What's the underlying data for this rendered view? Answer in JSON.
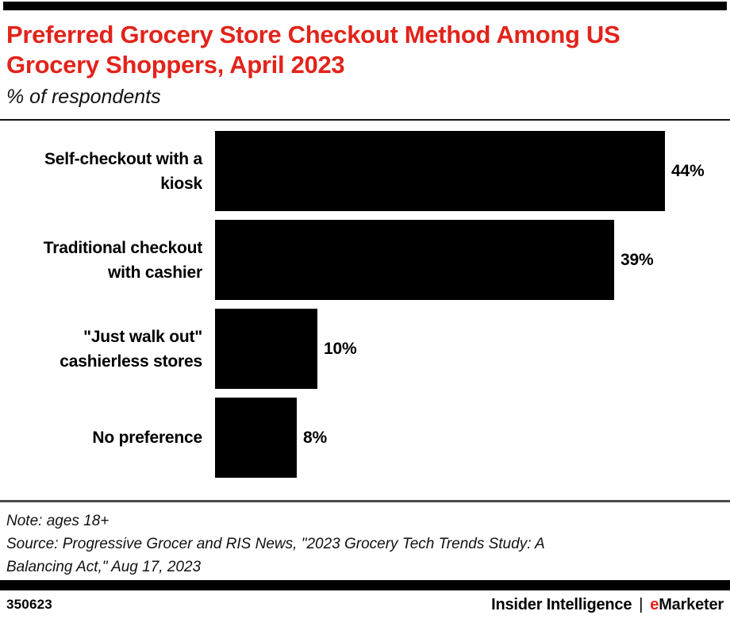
{
  "header": {
    "title": "Preferred Grocery Store Checkout Method Among US\nGrocery Shoppers, April 2023",
    "subtitle": "% of respondents"
  },
  "chart_data": {
    "type": "bar",
    "orientation": "horizontal",
    "title": "Preferred Grocery Store Checkout Method Among US Grocery Shoppers, April 2023",
    "subtitle": "% of respondents",
    "categories": [
      "Self-checkout with a\nkiosk",
      "Traditional checkout\nwith cashier",
      "\"Just walk out\"\ncashierless stores",
      "No preference"
    ],
    "values": [
      44,
      39,
      10,
      8
    ],
    "value_labels": [
      "44%",
      "39%",
      "10%",
      "8%"
    ],
    "xlabel": "",
    "ylabel": "",
    "xlim": [
      0,
      46
    ],
    "grid": false,
    "legend": false,
    "bar_color": "#000000"
  },
  "footnotes": {
    "note": "Note: ages 18+",
    "source": "Source: Progressive Grocer and RIS News, \"2023 Grocery Tech Trends Study: A\nBalancing Act,\" Aug 17, 2023"
  },
  "footer": {
    "chart_id": "350623",
    "brand_left": "Insider Intelligence",
    "separator": "|",
    "brand_e": "e",
    "brand_rest": "Marketer"
  },
  "colors": {
    "accent_red": "#e2231a",
    "bar_black": "#000000",
    "divider_gray": "#4a4a4a"
  }
}
